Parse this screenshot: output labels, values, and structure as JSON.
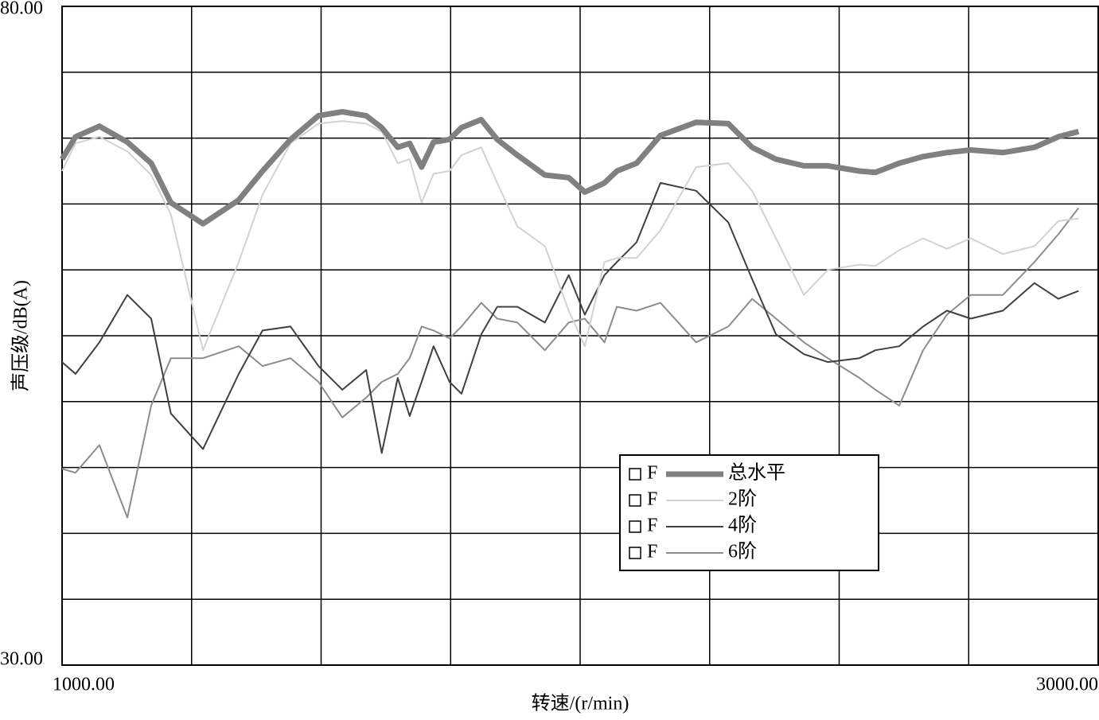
{
  "chart_data": {
    "type": "line",
    "xlabel": "转速/(r/min)",
    "ylabel": "声压级/dB(A)",
    "xlim": [
      1000,
      3000
    ],
    "ylim": [
      30,
      80
    ],
    "xticks": [
      {
        "value": 1000,
        "label": "1000.00"
      },
      {
        "value": 3000,
        "label": "3000.00"
      }
    ],
    "yticks": [
      {
        "value": 30,
        "label": "30.00"
      },
      {
        "value": 80,
        "label": "80.00"
      }
    ],
    "xgrid": [
      1250,
      1500,
      1750,
      2000,
      2250,
      2500,
      2750
    ],
    "ygrid": [
      35,
      40,
      45,
      50,
      55,
      60,
      65,
      70,
      75
    ],
    "legend_prefix": "F",
    "x": [
      1000,
      1026,
      1072,
      1126,
      1172,
      1210,
      1272,
      1341,
      1387,
      1441,
      1495,
      1541,
      1587,
      1617,
      1648,
      1671,
      1694,
      1717,
      1748,
      1771,
      1809,
      1840,
      1879,
      1932,
      1978,
      2009,
      2047,
      2071,
      2109,
      2155,
      2224,
      2286,
      2332,
      2378,
      2432,
      2478,
      2539,
      2570,
      2616,
      2662,
      2708,
      2754,
      2816,
      2877,
      2923,
      2962
    ],
    "series": [
      {
        "name": "总水平",
        "color": "#808080",
        "width": 7,
        "values": [
          68.4,
          70.1,
          70.9,
          69.7,
          68.1,
          65.1,
          63.5,
          65.3,
          67.5,
          69.9,
          71.7,
          72.0,
          71.7,
          70.8,
          69.3,
          69.6,
          67.8,
          69.7,
          69.9,
          70.8,
          71.4,
          69.9,
          68.7,
          67.2,
          67.0,
          65.9,
          66.6,
          67.5,
          68.1,
          70.2,
          71.2,
          71.1,
          69.3,
          68.4,
          67.9,
          67.9,
          67.5,
          67.4,
          68.1,
          68.6,
          68.9,
          69.1,
          68.9,
          69.3,
          70.1,
          70.5
        ]
      },
      {
        "name": "2阶",
        "color": "#d2d2d2",
        "width": 2,
        "values": [
          67.5,
          69.6,
          70.1,
          69.0,
          67.2,
          64.2,
          53.9,
          60.6,
          65.7,
          69.6,
          71.1,
          71.3,
          71.1,
          70.5,
          68.1,
          68.4,
          65.1,
          67.3,
          67.5,
          68.7,
          69.3,
          66.6,
          63.3,
          61.8,
          56.9,
          54.2,
          60.6,
          60.9,
          60.9,
          63.0,
          67.8,
          68.1,
          66.0,
          62.4,
          58.1,
          60.0,
          60.4,
          60.3,
          61.5,
          62.4,
          61.6,
          62.4,
          61.2,
          61.8,
          63.7,
          63.9
        ]
      },
      {
        "name": "4阶",
        "color": "#404040",
        "width": 2,
        "values": [
          53.0,
          52.1,
          54.5,
          58.1,
          56.3,
          49.1,
          46.4,
          52.1,
          55.4,
          55.7,
          52.7,
          50.9,
          52.4,
          46.1,
          51.8,
          48.9,
          51.5,
          54.2,
          51.5,
          50.6,
          55.1,
          57.2,
          57.2,
          56.0,
          59.6,
          56.6,
          59.6,
          60.6,
          62.1,
          66.6,
          66.0,
          63.6,
          59.3,
          55.1,
          53.6,
          53.0,
          53.3,
          53.9,
          54.2,
          55.7,
          56.9,
          56.3,
          56.9,
          59.0,
          57.8,
          58.4
        ]
      },
      {
        "name": "6阶",
        "color": "#8c8c8c",
        "width": 2,
        "values": [
          44.9,
          44.6,
          46.7,
          41.2,
          49.7,
          53.3,
          53.3,
          54.2,
          52.7,
          53.3,
          51.5,
          48.8,
          50.3,
          51.5,
          52.1,
          53.3,
          55.7,
          55.4,
          54.8,
          55.7,
          57.5,
          56.3,
          56.0,
          53.9,
          56.0,
          56.3,
          54.5,
          57.2,
          56.9,
          57.5,
          54.5,
          55.7,
          57.8,
          56.3,
          54.5,
          53.3,
          51.8,
          50.9,
          49.7,
          53.9,
          56.6,
          58.1,
          58.1,
          60.6,
          62.7,
          64.7
        ]
      }
    ]
  }
}
